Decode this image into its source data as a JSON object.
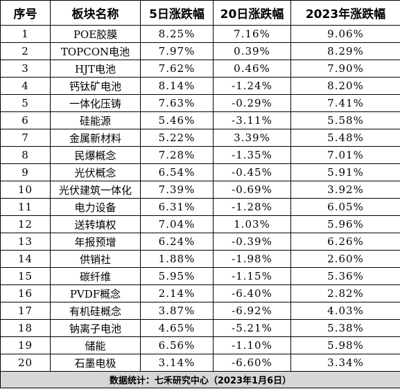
{
  "table": {
    "headers": {
      "index": "序号",
      "sector": "板块名称",
      "change_5d": "5日涨跌幅",
      "change_20d": "20日涨跌幅",
      "change_2023": "2023年涨跌幅"
    },
    "rows": [
      {
        "index": "1",
        "sector": "POE胶膜",
        "change_5d": "8.25%",
        "change_20d": "7.16%",
        "change_2023": "9.06%"
      },
      {
        "index": "2",
        "sector": "TOPCON电池",
        "change_5d": "7.97%",
        "change_20d": "0.39%",
        "change_2023": "8.29%"
      },
      {
        "index": "3",
        "sector": "HJT电池",
        "change_5d": "7.62%",
        "change_20d": "0.46%",
        "change_2023": "7.90%"
      },
      {
        "index": "4",
        "sector": "钙钛矿电池",
        "change_5d": "8.14%",
        "change_20d": "-1.24%",
        "change_2023": "8.20%"
      },
      {
        "index": "5",
        "sector": "一体化压铸",
        "change_5d": "7.63%",
        "change_20d": "-0.29%",
        "change_2023": "7.41%"
      },
      {
        "index": "6",
        "sector": "硅能源",
        "change_5d": "5.46%",
        "change_20d": "-3.11%",
        "change_2023": "5.58%"
      },
      {
        "index": "7",
        "sector": "金属新材料",
        "change_5d": "5.22%",
        "change_20d": "3.39%",
        "change_2023": "5.48%"
      },
      {
        "index": "8",
        "sector": "民爆概念",
        "change_5d": "7.28%",
        "change_20d": "-1.35%",
        "change_2023": "7.01%"
      },
      {
        "index": "9",
        "sector": "光伏概念",
        "change_5d": "6.54%",
        "change_20d": "-0.45%",
        "change_2023": "5.91%"
      },
      {
        "index": "10",
        "sector": "光伏建筑一体化",
        "change_5d": "7.39%",
        "change_20d": "-0.69%",
        "change_2023": "3.92%"
      },
      {
        "index": "11",
        "sector": "电力设备",
        "change_5d": "6.31%",
        "change_20d": "-1.28%",
        "change_2023": "6.05%"
      },
      {
        "index": "12",
        "sector": "送转填权",
        "change_5d": "7.04%",
        "change_20d": "1.03%",
        "change_2023": "5.96%"
      },
      {
        "index": "13",
        "sector": "年报预增",
        "change_5d": "6.24%",
        "change_20d": "-0.39%",
        "change_2023": "6.26%"
      },
      {
        "index": "14",
        "sector": "供销社",
        "change_5d": "1.88%",
        "change_20d": "-1.98%",
        "change_2023": "2.60%"
      },
      {
        "index": "15",
        "sector": "碳纤维",
        "change_5d": "5.95%",
        "change_20d": "-1.15%",
        "change_2023": "5.36%"
      },
      {
        "index": "16",
        "sector": "PVDF概念",
        "change_5d": "2.14%",
        "change_20d": "-6.40%",
        "change_2023": "2.82%"
      },
      {
        "index": "17",
        "sector": "有机硅概念",
        "change_5d": "3.87%",
        "change_20d": "-6.92%",
        "change_2023": "4.03%"
      },
      {
        "index": "18",
        "sector": "钠离子电池",
        "change_5d": "4.65%",
        "change_20d": "-5.21%",
        "change_2023": "5.38%"
      },
      {
        "index": "19",
        "sector": "储能",
        "change_5d": "6.56%",
        "change_20d": "-1.10%",
        "change_2023": "5.98%"
      },
      {
        "index": "20",
        "sector": "石墨电极",
        "change_5d": "3.14%",
        "change_20d": "-6.60%",
        "change_2023": "3.34%"
      }
    ],
    "footer": "数据统计：七禾研究中心（2023年1月6日）"
  }
}
